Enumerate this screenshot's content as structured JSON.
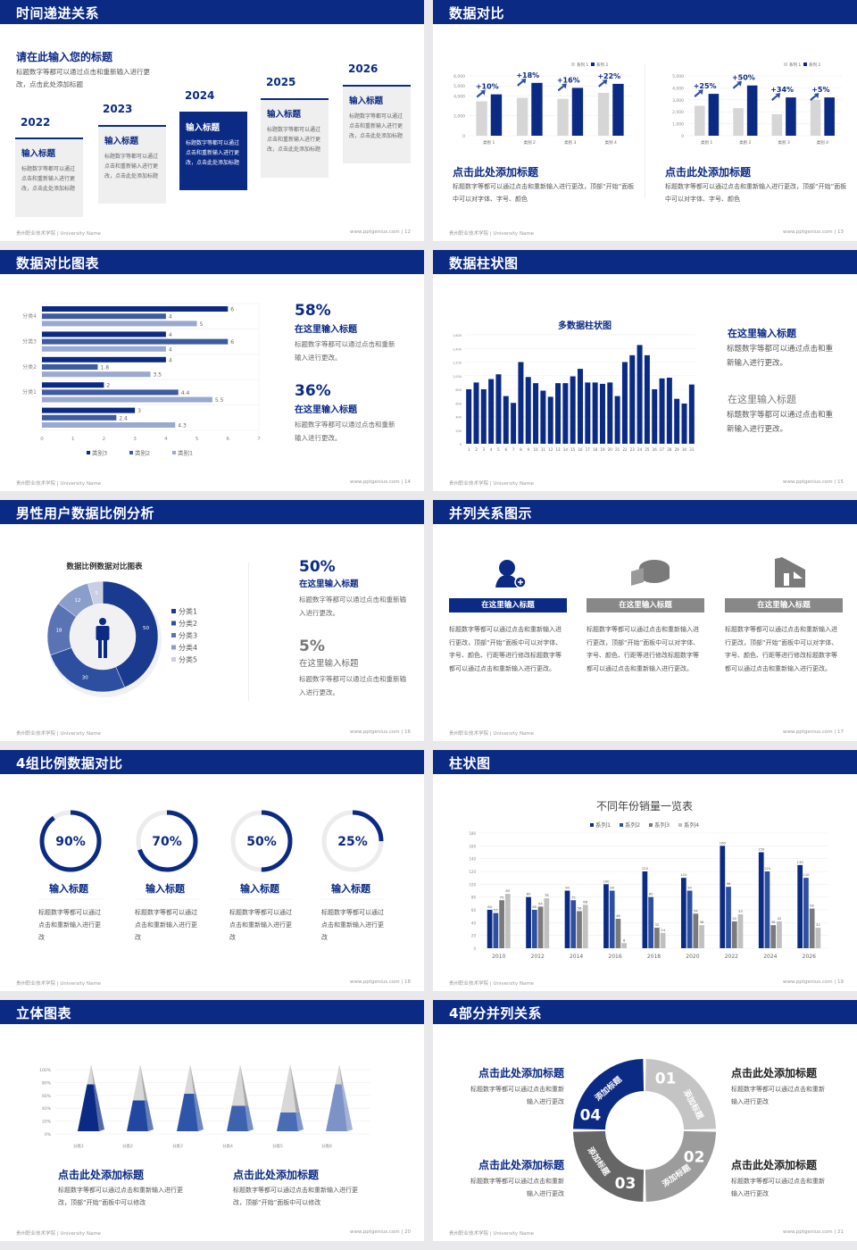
{
  "footer": {
    "school": "贵州职业技术学院 | University Name",
    "site": "www.pptgenius.com |"
  },
  "colors": {
    "navy": "#0b2a84",
    "mid": "#2e4fa0",
    "light": "#8a9cc8",
    "gray": "#d6d6d6"
  },
  "slides": [
    {
      "title": "时间递进关系",
      "page": "12",
      "heading": "请在此输入您的标题",
      "desc": "标题数字等都可以通过点击和重新输入进行更改，点击此处添加标题",
      "steps": [
        {
          "year": "2022",
          "title": "输入标题",
          "text": "标题数字等都可以通过点击和重新输入进行更改，点击此处添加标题"
        },
        {
          "year": "2023",
          "title": "输入标题",
          "text": "标题数字等都可以通过点击和重新输入进行更改，点击此处添加标题"
        },
        {
          "year": "2024",
          "title": "输入标题",
          "text": "标题数字等都可以通过点击和重新输入进行更改，点击此处添加标题"
        },
        {
          "year": "2025",
          "title": "输入标题",
          "text": "标题数字等都可以通过点击和重新输入进行更改，点击此处添加标题"
        },
        {
          "year": "2026",
          "title": "输入标题",
          "text": "标题数字等都可以通过点击和重新输入进行更改，点击此处添加标题"
        }
      ]
    },
    {
      "title": "数据对比",
      "page": "13",
      "panels": [
        {
          "heading": "点击此处添加标题",
          "text": "标题数字等都可以通过点击和重新输入进行更改，顶部“开始”面板中可以对字体、字号、颜色"
        },
        {
          "heading": "点击此处添加标题",
          "text": "标题数字等都可以通过点击和重新输入进行更改，顶部“开始”面板中可以对字体、字号、颜色"
        }
      ]
    },
    {
      "title": "数据对比图表",
      "page": "14",
      "stats": [
        {
          "value": "58%",
          "title": "在这里输入标题",
          "text": "标题数字等都可以通过点击和重新输入进行更改。"
        },
        {
          "value": "36%",
          "title": "在这里输入标题",
          "text": "标题数字等都可以通过点击和重新输入进行更改。"
        }
      ]
    },
    {
      "title": "数据柱状图",
      "page": "15",
      "items": [
        {
          "title": "在这里输入标题",
          "text": "标题数字等都可以通过点击和重新输入进行更改。"
        },
        {
          "title": "在这里输入标题",
          "text": "标题数字等都可以通过点击和重新输入进行更改。"
        }
      ]
    },
    {
      "title": "男性用户数据比例分析",
      "page": "16",
      "stats": [
        {
          "value": "50%",
          "title": "在这里输入标题",
          "text": "标题数字等都可以通过点击和重新输入进行更改。"
        },
        {
          "value": "5%",
          "title": "在这里输入标题",
          "text": "标题数字等都可以通过点击和重新输入进行更改。"
        }
      ]
    },
    {
      "title": "并列关系图示",
      "page": "17",
      "cols": [
        {
          "icon": "user-add-icon",
          "title": "在这里输入标题",
          "text": "标题数字等都可以通过点击和重新输入进行更改，顶部“开始”面板中可以对字体、字号、颜色、行距等进行修改标题数字等都可以通过点击和重新输入进行更改。"
        },
        {
          "icon": "pie-chart-3d-icon",
          "title": "在这里输入标题",
          "text": "标题数字等都可以通过点击和重新输入进行更改，顶部“开始”面板中可以对字体、字号、颜色、行距等进行修改标题数字等都可以通过点击和重新输入进行更改。"
        },
        {
          "icon": "building-icon",
          "title": "在这里输入标题",
          "text": "标题数字等都可以通过点击和重新输入进行更改，顶部“开始”面板中可以对字体、字号、颜色、行距等进行修改标题数字等都可以通过点击和重新输入进行更改。"
        }
      ]
    },
    {
      "title": "4组比例数据对比",
      "page": "18",
      "items": [
        {
          "title": "输入标题",
          "text": "标题数字等都可以通过点击和重新输入进行更改"
        },
        {
          "title": "输入标题",
          "text": "标题数字等都可以通过点击和重新输入进行更改"
        },
        {
          "title": "输入标题",
          "text": "标题数字等都可以通过点击和重新输入进行更改"
        },
        {
          "title": "输入标题",
          "text": "标题数字等都可以通过点击和重新输入进行更改"
        }
      ]
    },
    {
      "title": "柱状图",
      "page": "19"
    },
    {
      "title": "立体图表",
      "page": "20",
      "panels": [
        {
          "heading": "点击此处添加标题",
          "text": "标题数字等都可以通过点击和重新输入进行更改，顶部“开始”面板中可以修改"
        },
        {
          "heading": "点击此处添加标题",
          "text": "标题数字等都可以通过点击和重新输入进行更改，顶部“开始”面板中可以修改"
        }
      ]
    },
    {
      "title": "4部分并列关系",
      "page": "21",
      "blocks": [
        {
          "title": "点击此处添加标题",
          "text": "标题数字等都可以通过点击和重新输入进行更改"
        },
        {
          "title": "点击此处添加标题",
          "text": "标题数字等都可以通过点击和重新输入进行更改"
        },
        {
          "title": "点击此处添加标题",
          "text": "标题数字等都可以通过点击和重新输入进行更改"
        },
        {
          "title": "点击此处添加标题",
          "text": "标题数字等都可以通过点击和重新输入进行更改"
        }
      ],
      "ring": [
        {
          "num": "01",
          "label": "添加标题"
        },
        {
          "num": "02",
          "label": "添加标题"
        },
        {
          "num": "03",
          "label": "添加标题"
        },
        {
          "num": "04",
          "label": "添加标题"
        }
      ]
    }
  ],
  "chart_data": [
    {
      "type": "bar",
      "categories": [
        "类别 1",
        "类别 2",
        "类别 3",
        "类别 4"
      ],
      "series": [
        {
          "name": "系列 1",
          "values": [
            3450,
            3800,
            3700,
            4300
          ]
        },
        {
          "name": "系列 2",
          "values": [
            4150,
            5300,
            4800,
            5200
          ]
        }
      ],
      "ylim": [
        0,
        6000
      ],
      "yticks": [
        "0",
        "2,000",
        "4,000",
        "5,000",
        "6,000"
      ],
      "ytick_values": [
        0,
        2000,
        4000,
        5000,
        6000
      ],
      "annotations": [
        "+10%",
        "+18%",
        "+16%",
        "+22%"
      ],
      "legend": "top-right"
    },
    {
      "type": "bar",
      "categories": [
        "类别 1",
        "类别 2",
        "类别 3",
        "类别 4"
      ],
      "series": [
        {
          "name": "系列 1",
          "values": [
            2500,
            2300,
            1800,
            3000
          ]
        },
        {
          "name": "系列 2",
          "values": [
            3500,
            4200,
            3200,
            3200
          ]
        }
      ],
      "ylim": [
        0,
        5000
      ],
      "yticks": [
        "0",
        "1,000",
        "2,000",
        "3,000",
        "4,000",
        "5,000"
      ],
      "ytick_values": [
        0,
        1000,
        2000,
        3000,
        4000,
        5000
      ],
      "annotations": [
        "+25%",
        "+50%",
        "+34%",
        "+5%"
      ],
      "legend": "top-right"
    },
    {
      "type": "bar",
      "orientation": "horizontal",
      "categories": [
        "分类4",
        "分类3",
        "分类2",
        "分类1",
        ""
      ],
      "series": [
        {
          "name": "类别3",
          "values": [
            6,
            4,
            4,
            2,
            3
          ]
        },
        {
          "name": "类别2",
          "values": [
            4,
            6,
            1.8,
            4.4,
            2.4
          ]
        },
        {
          "name": "类别1",
          "values": [
            5,
            4,
            3.5,
            5.5,
            4.3
          ]
        }
      ],
      "xlim": [
        0,
        7
      ],
      "xticks": [
        "0",
        "1",
        "2",
        "3",
        "4",
        "5",
        "6",
        "7"
      ],
      "legend": "bottom"
    },
    {
      "type": "bar",
      "title": "多数据柱状图",
      "categories": [
        "1",
        "2",
        "3",
        "4",
        "5",
        "6",
        "7",
        "8",
        "9",
        "10",
        "11",
        "12",
        "13",
        "14",
        "15",
        "16",
        "17",
        "18",
        "19",
        "20",
        "21",
        "22",
        "23",
        "24",
        "25",
        "26",
        "27",
        "28",
        "29",
        "30",
        "31"
      ],
      "values": [
        800,
        900,
        800,
        950,
        1020,
        700,
        600,
        1200,
        980,
        890,
        780,
        690,
        890,
        890,
        990,
        1100,
        900,
        900,
        880,
        900,
        700,
        1200,
        1300,
        1450,
        1300,
        800,
        960,
        970,
        660,
        590,
        870
      ],
      "ylim": [
        0,
        1600
      ],
      "yticks": [
        "0",
        "200",
        "400",
        "600",
        "800",
        "1,000",
        "1,200",
        "1,400",
        "1,600"
      ]
    },
    {
      "type": "pie",
      "title": "数据比例数据对比图表",
      "categories": [
        "分类1",
        "分类2",
        "分类3",
        "分类4",
        "分类5"
      ],
      "values": [
        50,
        30,
        18,
        12,
        5
      ],
      "donut": true,
      "legend": "right"
    },
    {
      "type": "pie",
      "subtype": "gauge",
      "values": [
        90,
        70,
        50,
        25
      ],
      "labels": [
        "90%",
        "70%",
        "50%",
        "25%"
      ]
    },
    {
      "type": "bar",
      "title": "不同年份销量一览表",
      "categories": [
        "2010",
        "2012",
        "2014",
        "2016",
        "2018",
        "2020",
        "2022",
        "2024",
        "2026"
      ],
      "series": [
        {
          "name": "系列1",
          "values": [
            60,
            80,
            90,
            100,
            120,
            110,
            160,
            150,
            130
          ]
        },
        {
          "name": "系列2",
          "values": [
            55,
            60,
            75,
            90,
            80,
            90,
            96,
            120,
            110
          ]
        },
        {
          "name": "系列3",
          "values": [
            75,
            65,
            58,
            46,
            32,
            54,
            42,
            36,
            62
          ]
        },
        {
          "name": "系列4",
          "values": [
            85,
            78,
            68,
            8,
            24,
            36,
            53,
            42,
            32
          ]
        }
      ],
      "ylim": [
        0,
        180
      ],
      "yticks": [
        "0",
        "20",
        "40",
        "60",
        "80",
        "100",
        "120",
        "140",
        "160",
        "180"
      ],
      "legend": "top"
    },
    {
      "type": "bar",
      "subtype": "3d-pyramid",
      "categories": [
        "分类1",
        "分类2",
        "分类3",
        "分类4",
        "分类5",
        "分类6"
      ],
      "values": [
        70,
        46,
        56,
        38,
        28,
        70
      ],
      "ylim": [
        0,
        100
      ],
      "yticks": [
        "0%",
        "20%",
        "40%",
        "60%",
        "80%",
        "100%"
      ]
    }
  ]
}
